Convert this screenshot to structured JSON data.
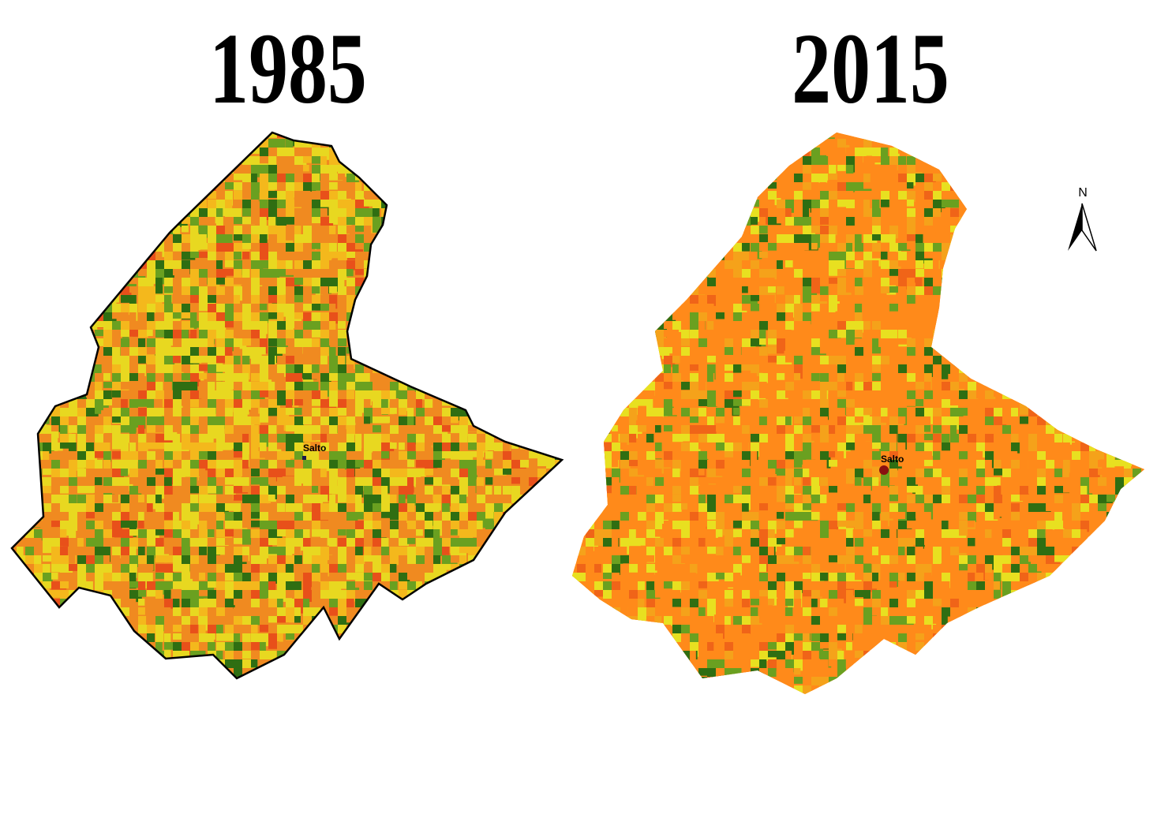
{
  "maps": [
    {
      "title": "1985",
      "town_label": "Salto"
    },
    {
      "title": "2015",
      "town_label": "Salto"
    }
  ],
  "north_arrow": {
    "label": "N"
  }
}
